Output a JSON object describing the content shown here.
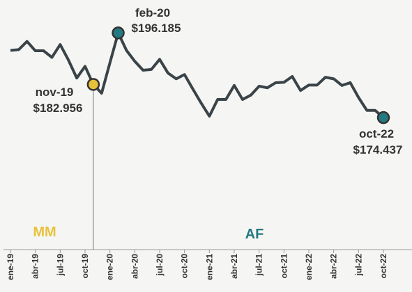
{
  "chart_data": {
    "type": "line",
    "categories": [
      "ene-19",
      null,
      null,
      "abr-19",
      null,
      null,
      "jul-19",
      null,
      null,
      "oct-19",
      null,
      null,
      "ene-20",
      null,
      null,
      "abr-20",
      null,
      null,
      "jul-20",
      null,
      null,
      "oct-20",
      null,
      null,
      "ene-21",
      null,
      null,
      "abr-21",
      null,
      null,
      "jul-21",
      null,
      null,
      "oct-21",
      null,
      null,
      "ene-22",
      null,
      null,
      "abr-22",
      null,
      null,
      "jul-22",
      null,
      null,
      "oct-22"
    ],
    "series": [
      {
        "color": "#3a4448",
        "values": [
          191700,
          191900,
          194000,
          191600,
          191600,
          189900,
          193200,
          189200,
          184600,
          187600,
          182956,
          180700,
          188500,
          196185,
          191700,
          188900,
          186600,
          186800,
          189400,
          185900,
          184400,
          185500,
          181800,
          178200,
          174800,
          179100,
          179100,
          182700,
          179100,
          180200,
          182500,
          182100,
          183400,
          183500,
          185000,
          181400,
          182800,
          182800,
          184800,
          184400,
          182700,
          183400,
          179600,
          176300,
          176300,
          174437
        ]
      }
    ],
    "ylim": [
      160000,
      200000
    ],
    "annotations": [
      {
        "date": "nov-19",
        "value": "$182.956",
        "color": "#e8c13a"
      },
      {
        "date": "feb-20",
        "value": "$196.185",
        "color": "#237a80"
      },
      {
        "date": "oct-22",
        "value": "$174.437",
        "color": "#237a80"
      }
    ],
    "regions": [
      {
        "label": "MM",
        "color": "#e8c13a"
      },
      {
        "label": "AF",
        "color": "#237a80"
      }
    ]
  }
}
